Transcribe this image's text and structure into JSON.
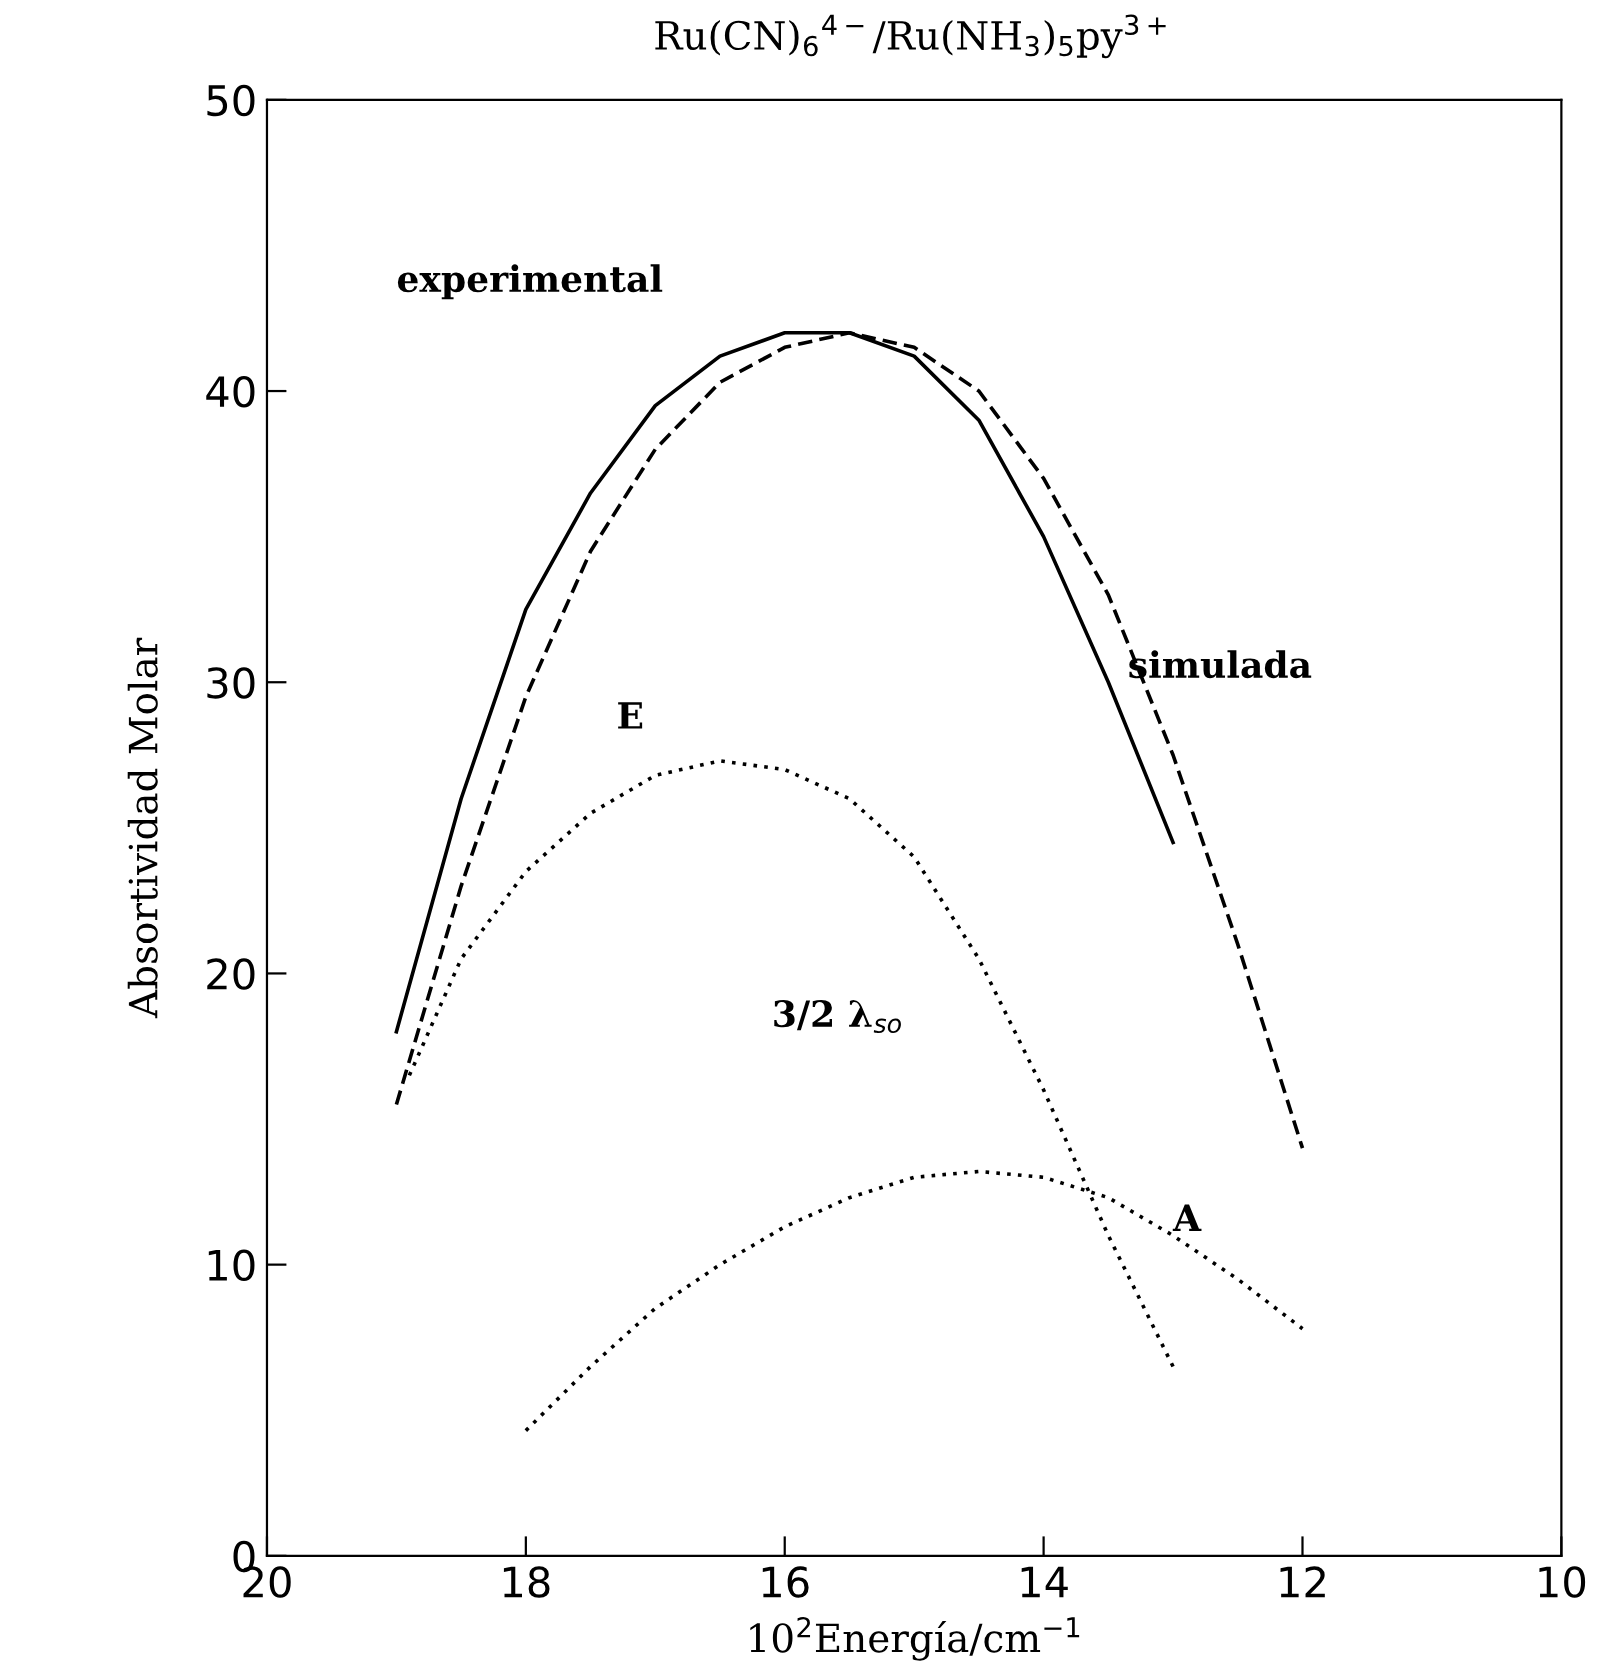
{
  "chart_data": {
    "type": "line",
    "title": "Ru(CN)$_{6}$$^{4−}$/Ru(NH$_{3}$)$_{5}$py$^{3+}$",
    "xlabel": "10$^{2}$Energía/cm$^{−1}$",
    "ylabel": "Absortividad Molar",
    "xlim": [
      20,
      10
    ],
    "xticks": [
      20,
      18,
      16,
      14,
      12,
      10
    ],
    "ylim": [
      0,
      50
    ],
    "yticks": [
      0,
      10,
      20,
      30,
      40,
      50
    ],
    "grid": false,
    "legend": false,
    "marker": "none",
    "series": [
      {
        "color": "#000000",
        "line_style": "solid",
        "x": [
          19,
          18.5,
          18,
          17.5,
          17,
          16.5,
          16,
          15.5,
          15,
          14.5,
          14,
          13.5,
          13
        ],
        "values": [
          18,
          26,
          32.5,
          36.5,
          39.5,
          41.2,
          42,
          42,
          41.2,
          39,
          35,
          30,
          24.5
        ]
      },
      {
        "color": "#000000",
        "line_style": "dashed",
        "x": [
          19,
          18.5,
          18,
          17.5,
          17,
          16.5,
          16,
          15.5,
          15,
          14.5,
          14,
          13.5,
          13,
          12.5,
          12
        ],
        "values": [
          15.5,
          23,
          29.5,
          34.5,
          38,
          40.3,
          41.5,
          42,
          41.5,
          40,
          37,
          33,
          27.5,
          21,
          14
        ]
      },
      {
        "color": "#000000",
        "line_style": "dotted",
        "x": [
          18.9,
          18.5,
          18,
          17.5,
          17,
          16.5,
          16,
          15.5,
          15,
          14.5,
          14,
          13.5,
          13
        ],
        "values": [
          16.5,
          20.5,
          23.5,
          25.5,
          26.8,
          27.3,
          27,
          26,
          24,
          20.5,
          16,
          11,
          6.5
        ]
      },
      {
        "color": "#000000",
        "line_style": "dotted",
        "x": [
          18,
          17.5,
          17,
          16.5,
          16,
          15.5,
          15,
          14.5,
          14,
          13.5,
          13,
          12.5,
          12
        ],
        "values": [
          4.3,
          6.5,
          8.5,
          10,
          11.3,
          12.3,
          13,
          13.2,
          13,
          12.3,
          11,
          9.5,
          7.8
        ]
      }
    ],
    "annotations": [
      "experimental",
      "simulada",
      "E",
      "3/2 λ$_{so}$",
      "A"
    ]
  }
}
